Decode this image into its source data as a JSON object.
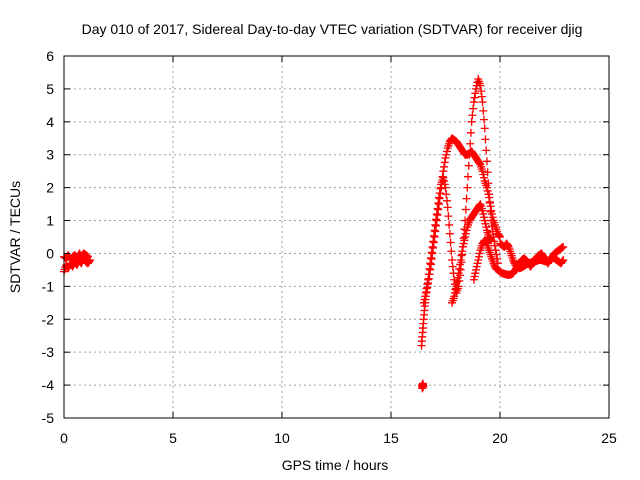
{
  "colors": {
    "series": "#ff0000",
    "grid": "#a0a0a0",
    "axis": "#000000"
  },
  "chart_data": {
    "type": "scatter",
    "title": "Day 010 of 2017, Sidereal Day-to-day VTEC variation (SDTVAR) for receiver djig",
    "xlabel": "GPS time / hours",
    "ylabel": "SDTVAR / TECUs",
    "xlim": [
      0,
      25
    ],
    "ylim": [
      -5,
      6
    ],
    "x_ticks": [
      "0",
      "5",
      "10",
      "15",
      "20",
      "25"
    ],
    "y_ticks": [
      "-5",
      "-4",
      "-3",
      "-2",
      "-1",
      "0",
      "1",
      "2",
      "3",
      "4",
      "5",
      "6"
    ],
    "grid": true,
    "marker": "plus",
    "series": [
      {
        "segments": [
          {
            "x": [
              0.0,
              0.1,
              0.2,
              0.3,
              0.4,
              0.5,
              0.6,
              0.7,
              0.8,
              0.9,
              1.0,
              1.1,
              1.2
            ],
            "y": [
              -0.55,
              -0.35,
              -0.45,
              -0.3,
              -0.4,
              -0.25,
              -0.35,
              -0.2,
              -0.3,
              -0.15,
              -0.25,
              -0.3,
              -0.2
            ]
          },
          {
            "x": [
              0.0,
              0.1,
              0.2,
              0.3,
              0.4,
              0.5,
              0.6,
              0.7,
              0.8,
              0.9,
              1.0,
              1.1
            ],
            "y": [
              -0.1,
              -0.15,
              -0.05,
              -0.2,
              -0.1,
              -0.05,
              -0.15,
              0.0,
              -0.1,
              0.0,
              -0.05,
              -0.1
            ]
          },
          {
            "x": [
              16.4,
              16.45,
              16.5,
              16.55,
              16.6,
              16.7,
              16.8,
              16.9,
              17.0,
              17.1,
              17.2,
              17.3,
              17.4,
              17.5,
              17.6,
              17.7,
              17.8,
              17.9,
              18.0,
              18.1,
              18.2,
              18.3,
              18.4,
              18.5,
              18.6,
              18.7,
              18.8,
              18.9,
              19.0,
              19.1,
              19.2,
              19.3,
              19.4,
              19.5,
              19.6,
              19.7,
              19.8,
              19.9,
              20.0
            ],
            "y": [
              -2.8,
              -2.4,
              -2.0,
              -1.6,
              -1.3,
              -0.9,
              -0.5,
              0.0,
              0.5,
              1.0,
              1.5,
              2.0,
              2.5,
              2.9,
              3.2,
              3.4,
              3.5,
              3.45,
              3.4,
              3.3,
              3.2,
              3.1,
              3.0,
              3.0,
              3.05,
              3.1,
              3.0,
              2.9,
              2.8,
              2.7,
              2.5,
              2.2,
              2.0,
              1.7,
              1.3,
              1.0,
              0.8,
              0.6,
              0.5
            ]
          },
          {
            "x": [
              16.5,
              16.6,
              16.7,
              16.8,
              16.9,
              17.0,
              17.1,
              17.2,
              17.3,
              17.4,
              17.5,
              17.6,
              17.7,
              17.8,
              17.9,
              18.0,
              18.1,
              18.2,
              18.3,
              18.4,
              18.5,
              18.6,
              18.7,
              18.8,
              18.9,
              19.0,
              19.1,
              19.2,
              19.3,
              19.4,
              19.5,
              19.6,
              19.7,
              19.8,
              19.9
            ],
            "y": [
              -1.5,
              -1.2,
              -0.8,
              -0.3,
              0.2,
              0.7,
              1.2,
              1.7,
              2.1,
              2.3,
              2.0,
              1.4,
              0.6,
              -0.2,
              -0.8,
              -1.2,
              -1.0,
              -0.5,
              0.2,
              1.0,
              2.0,
              3.0,
              4.0,
              4.6,
              5.0,
              5.3,
              5.1,
              4.6,
              3.8,
              2.8,
              1.8,
              1.0,
              0.5,
              0.1,
              -0.3
            ]
          },
          {
            "x": [
              17.8,
              17.9,
              18.0,
              18.1,
              18.2,
              18.3,
              18.4,
              18.5,
              18.6,
              18.7,
              18.8,
              18.9,
              19.0,
              19.1,
              19.2,
              19.3,
              19.4,
              19.5,
              19.6
            ],
            "y": [
              -1.5,
              -1.3,
              -1.0,
              -0.6,
              -0.2,
              0.2,
              0.5,
              0.8,
              1.0,
              1.1,
              1.2,
              1.3,
              1.4,
              1.5,
              1.3,
              1.0,
              0.7,
              0.5,
              0.4
            ]
          },
          {
            "x": [
              18.8,
              18.9,
              19.0,
              19.1,
              19.2,
              19.3,
              19.4,
              19.5,
              19.6,
              19.7,
              19.8,
              19.9,
              20.0,
              20.1,
              20.2,
              20.3,
              20.4,
              20.5,
              20.6,
              20.7,
              20.8,
              20.9,
              21.0,
              21.1,
              21.2,
              21.3,
              21.4,
              21.5,
              21.6,
              21.7,
              21.8,
              21.9,
              22.0,
              22.1,
              22.2,
              22.3,
              22.4,
              22.5,
              22.6,
              22.7,
              22.8,
              22.9
            ],
            "y": [
              -0.8,
              -0.5,
              -0.2,
              0.1,
              0.3,
              0.4,
              0.3,
              0.1,
              -0.1,
              -0.3,
              -0.45,
              -0.5,
              -0.55,
              -0.6,
              -0.62,
              -0.64,
              -0.65,
              -0.64,
              -0.6,
              -0.5,
              -0.4,
              -0.3,
              -0.2,
              -0.15,
              -0.2,
              -0.3,
              -0.4,
              -0.3,
              -0.2,
              -0.1,
              -0.05,
              0.0,
              -0.1,
              -0.2,
              -0.3,
              -0.2,
              -0.1,
              -0.15,
              -0.2,
              -0.25,
              -0.3,
              -0.2
            ]
          },
          {
            "x": [
              20.0,
              20.1,
              20.2,
              20.3,
              20.4,
              20.5,
              20.6,
              20.7,
              20.8,
              20.9,
              21.0,
              21.1,
              21.2,
              21.3,
              21.4,
              21.5,
              21.6,
              21.7,
              21.8,
              21.9,
              22.0,
              22.1,
              22.2,
              22.3,
              22.4,
              22.5,
              22.6,
              22.7,
              22.8,
              22.9
            ],
            "y": [
              0.3,
              0.25,
              0.2,
              0.3,
              0.2,
              0.0,
              -0.2,
              -0.35,
              -0.4,
              -0.45,
              -0.42,
              -0.38,
              -0.34,
              -0.3,
              -0.28,
              -0.26,
              -0.24,
              -0.22,
              -0.2,
              -0.2,
              -0.22,
              -0.24,
              -0.25,
              -0.2,
              -0.1,
              0.0,
              0.05,
              0.1,
              0.15,
              0.2
            ]
          },
          {
            "x": [
              16.42,
              16.44,
              16.46,
              16.48
            ],
            "y": [
              -4.0,
              -4.1,
              -3.95,
              -4.05
            ]
          }
        ]
      }
    ]
  }
}
